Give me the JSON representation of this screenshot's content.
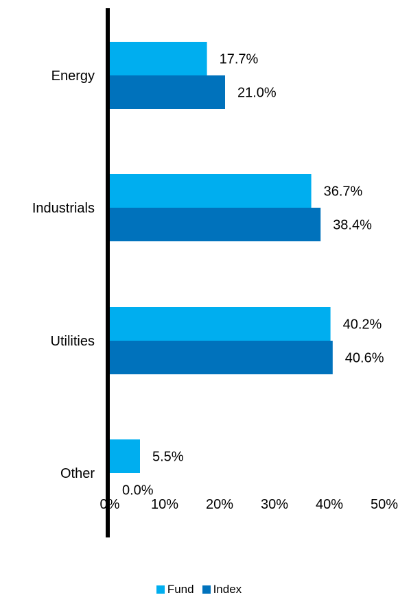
{
  "chart_data": {
    "type": "bar",
    "orientation": "horizontal",
    "categories": [
      "Energy",
      "Industrials",
      "Utilities",
      "Other"
    ],
    "series": [
      {
        "name": "Fund",
        "values": [
          17.7,
          36.7,
          40.2,
          5.5
        ],
        "labels": [
          "17.7%",
          "36.7%",
          "40.2%",
          "5.5%"
        ],
        "color": "#00AEEF"
      },
      {
        "name": "Index",
        "values": [
          21.0,
          38.4,
          40.6,
          0.0
        ],
        "labels": [
          "21.0%",
          "38.4%",
          "40.6%",
          "0.0%"
        ],
        "color": "#0072BC"
      }
    ],
    "xlim": [
      0,
      50
    ],
    "xticks": [
      0,
      10,
      20,
      30,
      40,
      50
    ],
    "xtick_labels": [
      "0%",
      "10%",
      "20%",
      "30%",
      "40%",
      "50%"
    ],
    "grid": false,
    "legend_position": "bottom-center",
    "title": "",
    "xlabel": "",
    "ylabel": ""
  }
}
